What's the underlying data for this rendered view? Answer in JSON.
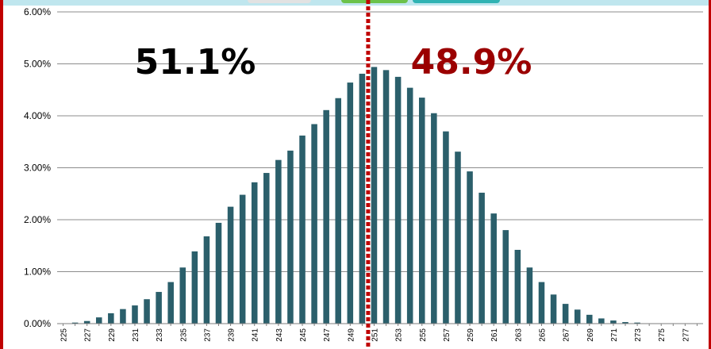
{
  "annotations": {
    "left_share": "51.1%",
    "right_share": "48.9%"
  },
  "colors": {
    "bar": "#2b5f6b",
    "divider": "#c00000",
    "left_text": "#000000",
    "right_text": "#9b0000",
    "grid": "#8c8c8c"
  },
  "chart_data": {
    "type": "bar",
    "title": "",
    "xlabel": "",
    "ylabel": "",
    "ylim": [
      0,
      0.06
    ],
    "y_ticks": [
      "0.00%",
      "1.00%",
      "2.00%",
      "3.00%",
      "4.00%",
      "5.00%",
      "6.00%"
    ],
    "x_tick_labels": [
      "225",
      "227",
      "229",
      "231",
      "233",
      "235",
      "237",
      "239",
      "241",
      "243",
      "245",
      "247",
      "249",
      "251",
      "253",
      "255",
      "257",
      "259",
      "261",
      "263",
      "265",
      "267",
      "269",
      "271",
      "273",
      "275",
      "277"
    ],
    "categories": [
      "225",
      "226",
      "227",
      "228",
      "229",
      "230",
      "231",
      "232",
      "233",
      "234",
      "235",
      "236",
      "237",
      "238",
      "239",
      "240",
      "241",
      "242",
      "243",
      "244",
      "245",
      "246",
      "247",
      "248",
      "249",
      "250",
      "251",
      "252",
      "253",
      "254",
      "255",
      "256",
      "257",
      "258",
      "259",
      "260",
      "261",
      "262",
      "263",
      "264",
      "265",
      "266",
      "267",
      "268",
      "269",
      "270",
      "271",
      "272",
      "273",
      "274",
      "275",
      "276",
      "277",
      "278"
    ],
    "values": [
      0.0,
      0.0002,
      0.0005,
      0.0012,
      0.002,
      0.0028,
      0.0035,
      0.0047,
      0.0061,
      0.008,
      0.0108,
      0.0139,
      0.0168,
      0.0194,
      0.0225,
      0.0248,
      0.0272,
      0.029,
      0.0315,
      0.0333,
      0.0362,
      0.0384,
      0.0411,
      0.0434,
      0.0464,
      0.0481,
      0.0494,
      0.0488,
      0.0475,
      0.0454,
      0.0435,
      0.0405,
      0.037,
      0.0331,
      0.0293,
      0.0252,
      0.0212,
      0.018,
      0.0142,
      0.0108,
      0.008,
      0.0056,
      0.0038,
      0.0027,
      0.0017,
      0.001,
      0.0006,
      0.0003,
      0.0002,
      0.0,
      0.0,
      0.0,
      0.0,
      0.0
    ],
    "divider_after_category": "250",
    "grid": true
  }
}
